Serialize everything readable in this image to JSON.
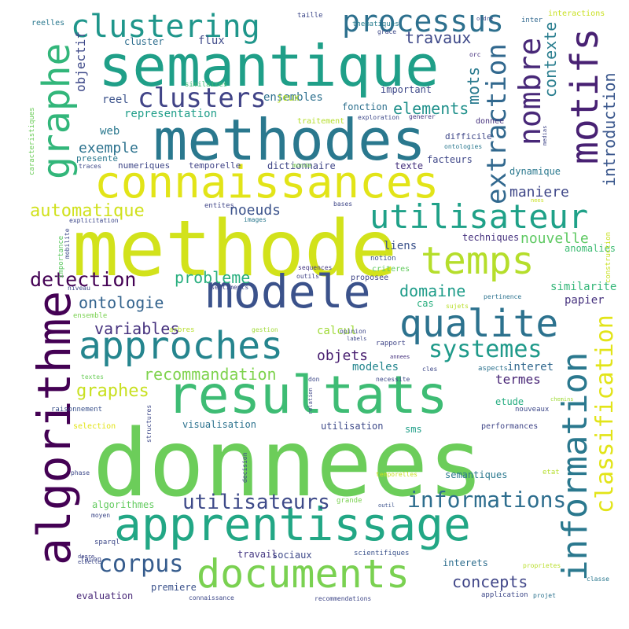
{
  "word_cloud": {
    "words": [
      {
        "text": "donnees"
      },
      {
        "text": "methode"
      },
      {
        "text": "methodes"
      },
      {
        "text": "semantique"
      },
      {
        "text": "connaissances"
      },
      {
        "text": "resultats"
      },
      {
        "text": "apprentissage"
      },
      {
        "text": "algorithme"
      },
      {
        "text": "modele"
      },
      {
        "text": "documents"
      },
      {
        "text": "approches"
      },
      {
        "text": "qualite"
      },
      {
        "text": "temps"
      },
      {
        "text": "utilisateur"
      },
      {
        "text": "motifs"
      },
      {
        "text": "information"
      },
      {
        "text": "graphe"
      },
      {
        "text": "processus"
      },
      {
        "text": "clustering"
      },
      {
        "text": "clusters"
      },
      {
        "text": "nombre"
      },
      {
        "text": "extraction"
      },
      {
        "text": "classification"
      },
      {
        "text": "systemes"
      },
      {
        "text": "corpus"
      },
      {
        "text": "informations"
      },
      {
        "text": "utilisateurs"
      },
      {
        "text": "detection"
      },
      {
        "text": "automatique"
      },
      {
        "text": "probleme"
      },
      {
        "text": "ontologie"
      },
      {
        "text": "graphes"
      },
      {
        "text": "recommandation"
      },
      {
        "text": "variables"
      },
      {
        "text": "concepts"
      },
      {
        "text": "objets"
      },
      {
        "text": "domaine"
      },
      {
        "text": "introduction"
      },
      {
        "text": "contexte"
      },
      {
        "text": "travaux"
      },
      {
        "text": "elements"
      },
      {
        "text": "mots"
      },
      {
        "text": "maniere"
      },
      {
        "text": "nouvelle"
      },
      {
        "text": "exemple"
      },
      {
        "text": "noeuds"
      },
      {
        "text": "objectif"
      },
      {
        "text": "termes"
      },
      {
        "text": "interet"
      },
      {
        "text": "representation"
      },
      {
        "text": "ensembles"
      },
      {
        "text": "similarite"
      },
      {
        "text": "papier"
      },
      {
        "text": "modeles"
      },
      {
        "text": "calcul"
      },
      {
        "text": "liens"
      },
      {
        "text": "reel"
      },
      {
        "text": "web"
      },
      {
        "text": "flux"
      },
      {
        "text": "cluster"
      },
      {
        "text": "jeux"
      },
      {
        "text": "sms"
      },
      {
        "text": "visualisation"
      },
      {
        "text": "utilisation"
      },
      {
        "text": "etude"
      },
      {
        "text": "sociaux"
      },
      {
        "text": "travail"
      },
      {
        "text": "interets"
      },
      {
        "text": "algorithmes"
      },
      {
        "text": "semantiques"
      },
      {
        "text": "premiere"
      },
      {
        "text": "evaluation"
      },
      {
        "text": "cas"
      },
      {
        "text": "fonction"
      },
      {
        "text": "important"
      },
      {
        "text": "techniques"
      },
      {
        "text": "dynamique"
      },
      {
        "text": "anomalies"
      },
      {
        "text": "facteurs"
      },
      {
        "text": "difficile"
      },
      {
        "text": "texte"
      },
      {
        "text": "dictionnaire"
      },
      {
        "text": "temporelle"
      },
      {
        "text": "numeriques"
      },
      {
        "text": "presente"
      },
      {
        "text": "traces"
      },
      {
        "text": "caracteristiques"
      },
      {
        "text": "reelles"
      },
      {
        "text": "taille"
      },
      {
        "text": "thematiques"
      },
      {
        "text": "grace"
      },
      {
        "text": "inter"
      },
      {
        "text": "interactions"
      },
      {
        "text": "orc"
      },
      {
        "text": "similaires"
      },
      {
        "text": "traitement"
      },
      {
        "text": "exploration"
      },
      {
        "text": "generer"
      },
      {
        "text": "donnee"
      },
      {
        "text": "medias"
      },
      {
        "text": "ontologies"
      },
      {
        "text": "monde"
      },
      {
        "text": "entites"
      },
      {
        "text": "bases"
      },
      {
        "text": "images"
      },
      {
        "text": "explicitation"
      },
      {
        "text": "niveau"
      },
      {
        "text": "sentiments"
      },
      {
        "text": "outils"
      },
      {
        "text": "sequences"
      },
      {
        "text": "proposee"
      },
      {
        "text": "criteres"
      },
      {
        "text": "notion"
      },
      {
        "text": "importance"
      },
      {
        "text": "mobilite"
      },
      {
        "text": "construction"
      },
      {
        "text": "pertinence"
      },
      {
        "text": "sujets"
      },
      {
        "text": "arbres"
      },
      {
        "text": "gestion"
      },
      {
        "text": "opinion"
      },
      {
        "text": "labels"
      },
      {
        "text": "rapport"
      },
      {
        "text": "annees"
      },
      {
        "text": "cles"
      },
      {
        "text": "aspects"
      },
      {
        "text": "ensemble"
      },
      {
        "text": "textes"
      },
      {
        "text": "don"
      },
      {
        "text": "necessite"
      },
      {
        "text": "relation"
      },
      {
        "text": "raisonnement"
      },
      {
        "text": "chemins"
      },
      {
        "text": "nouveaux"
      },
      {
        "text": "selection"
      },
      {
        "text": "performances"
      },
      {
        "text": "structures"
      },
      {
        "text": "phase"
      },
      {
        "text": "decision"
      },
      {
        "text": "temporelles"
      },
      {
        "text": "etat"
      },
      {
        "text": "moyen"
      },
      {
        "text": "grande"
      },
      {
        "text": "outil"
      },
      {
        "text": "sparql"
      },
      {
        "text": "scientifiques"
      },
      {
        "text": "facon"
      },
      {
        "text": "degre"
      },
      {
        "text": "echelle"
      },
      {
        "text": "proprietes"
      },
      {
        "text": "classe"
      },
      {
        "text": "connaissance"
      },
      {
        "text": "recommendations"
      },
      {
        "text": "application"
      },
      {
        "text": "projet"
      },
      {
        "text": "ordre"
      },
      {
        "text": "nees"
      }
    ]
  }
}
